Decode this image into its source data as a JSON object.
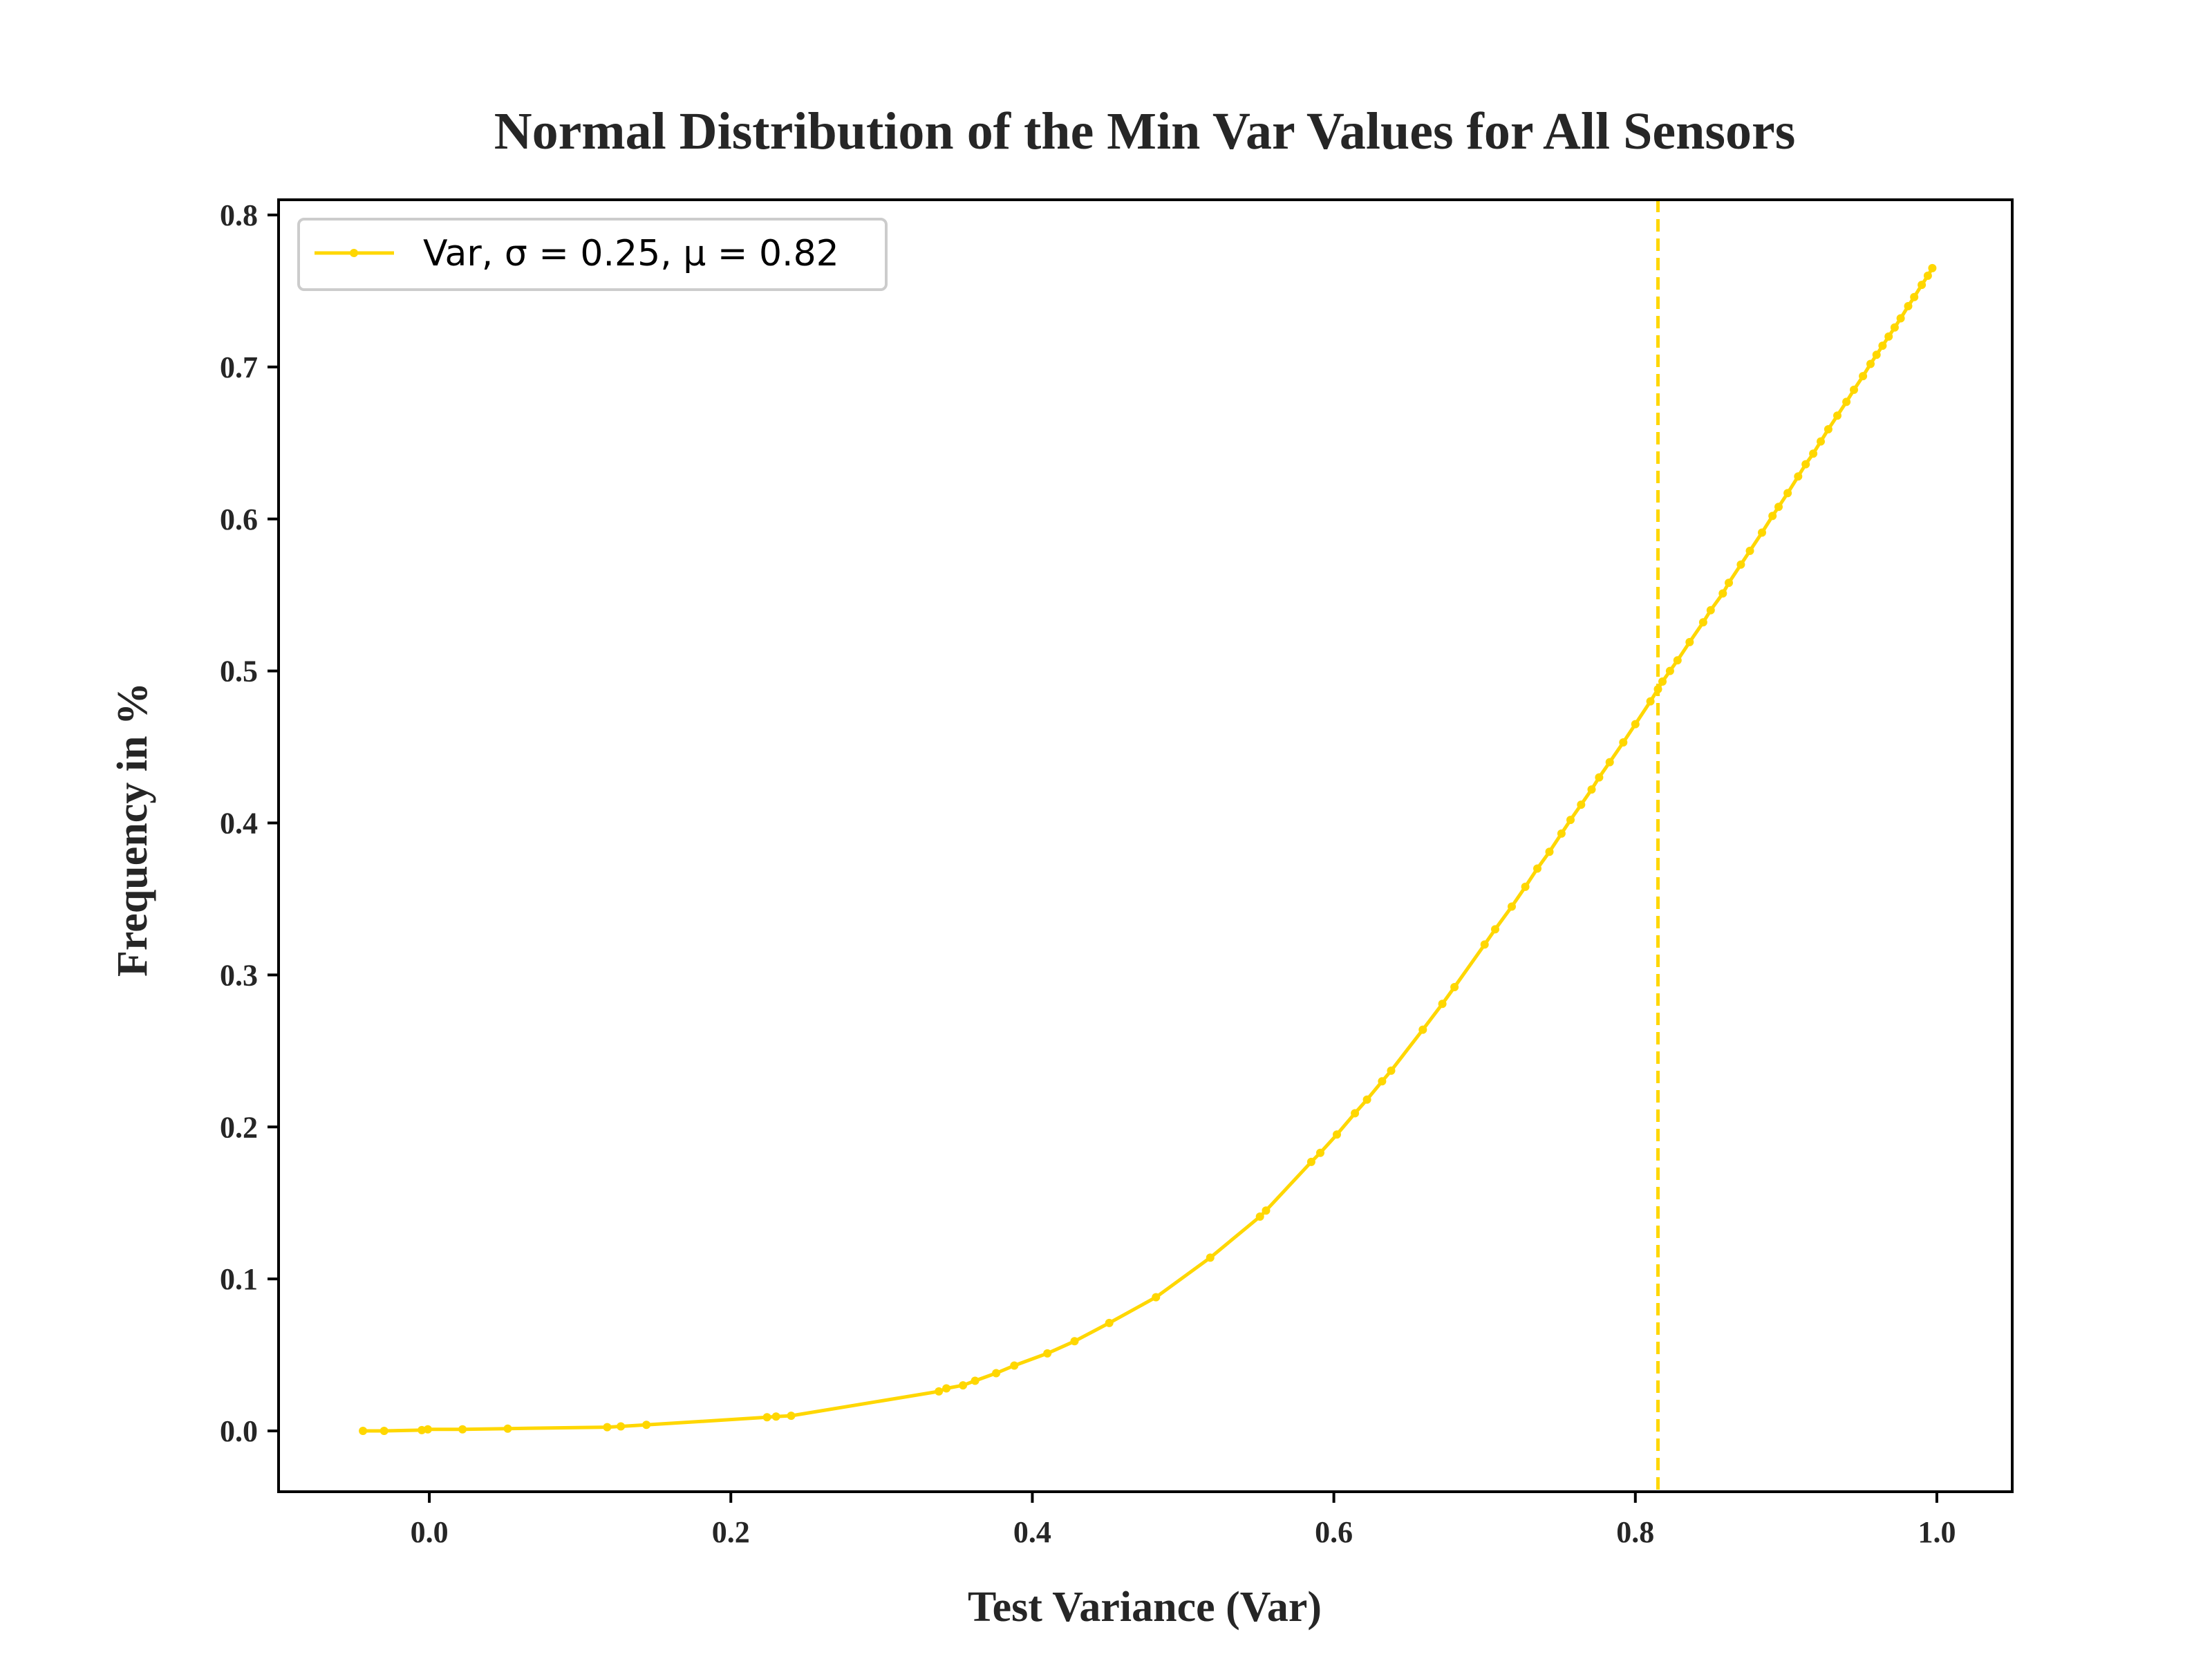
{
  "chart_data": {
    "type": "line",
    "title": "Normal Distribution of the Min Var Values for All Sensors",
    "xlabel": "Test Variance (Var)",
    "ylabel": "Frequency in %",
    "xlim": [
      -0.1,
      1.05
    ],
    "ylim": [
      -0.04,
      0.81
    ],
    "xticks": [
      0.0,
      0.2,
      0.4,
      0.6,
      0.8,
      1.0
    ],
    "xtick_labels": [
      "0.0",
      "0.2",
      "0.4",
      "0.6",
      "0.8",
      "1.0"
    ],
    "yticks": [
      0.0,
      0.1,
      0.2,
      0.3,
      0.4,
      0.5,
      0.6,
      0.7,
      0.8
    ],
    "ytick_labels": [
      "0.0",
      "0.1",
      "0.2",
      "0.3",
      "0.4",
      "0.5",
      "0.6",
      "0.7",
      "0.8"
    ],
    "grid": false,
    "legend_position": "top-left",
    "series": [
      {
        "name": "Var, σ = 0.25, μ = 0.82",
        "color": "#FFD700",
        "marker": "dot",
        "x": [
          -0.044,
          -0.03,
          -0.005,
          -0.001,
          0.022,
          0.052,
          0.118,
          0.127,
          0.144,
          0.224,
          0.23,
          0.24,
          0.338,
          0.343,
          0.354,
          0.362,
          0.376,
          0.388,
          0.41,
          0.428,
          0.451,
          0.482,
          0.518,
          0.551,
          0.555,
          0.585,
          0.591,
          0.602,
          0.614,
          0.622,
          0.632,
          0.638,
          0.659,
          0.672,
          0.68,
          0.7,
          0.707,
          0.718,
          0.727,
          0.735,
          0.743,
          0.751,
          0.757,
          0.764,
          0.771,
          0.776,
          0.783,
          0.792,
          0.8,
          0.81,
          0.815,
          0.818,
          0.823,
          0.828,
          0.836,
          0.845,
          0.85,
          0.858,
          0.862,
          0.87,
          0.876,
          0.884,
          0.891,
          0.895,
          0.901,
          0.908,
          0.913,
          0.918,
          0.923,
          0.928,
          0.934,
          0.94,
          0.945,
          0.951,
          0.956,
          0.96,
          0.964,
          0.968,
          0.972,
          0.976,
          0.981,
          0.985,
          0.99,
          0.994,
          0.997
        ],
        "y": [
          0.0,
          0.0,
          0.0005,
          0.001,
          0.001,
          0.0015,
          0.0025,
          0.003,
          0.004,
          0.009,
          0.0095,
          0.01,
          0.026,
          0.028,
          0.03,
          0.033,
          0.038,
          0.043,
          0.051,
          0.059,
          0.071,
          0.088,
          0.114,
          0.141,
          0.145,
          0.177,
          0.183,
          0.195,
          0.209,
          0.218,
          0.23,
          0.237,
          0.264,
          0.281,
          0.292,
          0.32,
          0.33,
          0.345,
          0.358,
          0.37,
          0.381,
          0.393,
          0.402,
          0.412,
          0.422,
          0.43,
          0.44,
          0.453,
          0.465,
          0.48,
          0.488,
          0.493,
          0.5,
          0.507,
          0.519,
          0.532,
          0.54,
          0.551,
          0.558,
          0.57,
          0.579,
          0.591,
          0.602,
          0.608,
          0.617,
          0.628,
          0.636,
          0.643,
          0.651,
          0.659,
          0.668,
          0.677,
          0.685,
          0.694,
          0.702,
          0.708,
          0.714,
          0.72,
          0.726,
          0.732,
          0.74,
          0.746,
          0.754,
          0.76,
          0.765
        ]
      }
    ],
    "annotations": [
      {
        "type": "vertical-line",
        "x": 0.815,
        "style": "dashed",
        "color": "#FFD700"
      }
    ]
  }
}
